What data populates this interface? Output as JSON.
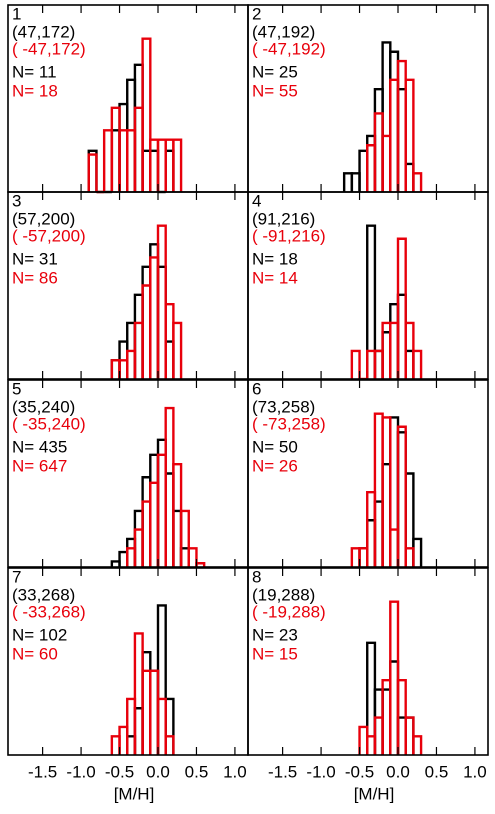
{
  "chart_data": [
    {
      "type": "histogram",
      "title": "1",
      "annotations": [
        "(47,172)",
        "( -47,172)"
      ],
      "xlim": [
        -1.95,
        1.17
      ],
      "ylim": [
        0,
        1
      ],
      "series": [
        {
          "name": "N= 11",
          "color": "#000000",
          "bins": [
            -0.9,
            -0.8,
            -0.7,
            -0.6,
            -0.5,
            -0.4,
            -0.3,
            -0.2,
            -0.1,
            0,
            0.1,
            0.2
          ],
          "values": [
            0.22,
            0,
            0,
            0.33,
            0.47,
            0.6,
            0.68,
            0.22,
            0.22,
            0,
            0.22
          ]
        },
        {
          "name": "N= 18",
          "color": "#e8000b",
          "bins": [
            -0.9,
            -0.8,
            -0.7,
            -0.6,
            -0.5,
            -0.4,
            -0.3,
            -0.2,
            -0.1,
            0,
            0.1,
            0.2,
            0.3
          ],
          "values": [
            0.2,
            0,
            0.33,
            0.45,
            0.33,
            0.33,
            0.45,
            0.82,
            0.28,
            0.28,
            0.28,
            0.28
          ]
        }
      ]
    },
    {
      "type": "histogram",
      "title": "2",
      "annotations": [
        "(47,192)",
        "( -47,192)"
      ],
      "xlim": [
        -1.95,
        1.17
      ],
      "ylim": [
        0,
        1
      ],
      "series": [
        {
          "name": "N= 25",
          "color": "#000000",
          "bins": [
            -0.7,
            -0.6,
            -0.5,
            -0.4,
            -0.3,
            -0.2,
            -0.1,
            0,
            0.1,
            0.2
          ],
          "values": [
            0.1,
            0.1,
            0.22,
            0.3,
            0.55,
            0.8,
            0.75,
            0.55,
            0.15
          ]
        },
        {
          "name": "N= 55",
          "color": "#e8000b",
          "bins": [
            -0.4,
            -0.3,
            -0.2,
            -0.1,
            0,
            0.1,
            0.2,
            0.3
          ],
          "values": [
            0.25,
            0.42,
            0.3,
            0.6,
            0.7,
            0.6,
            0.1
          ]
        }
      ]
    },
    {
      "type": "histogram",
      "title": "3",
      "annotations": [
        "(57,200)",
        "( -57,200)"
      ],
      "xlim": [
        -1.95,
        1.17
      ],
      "ylim": [
        0,
        1
      ],
      "series": [
        {
          "name": "N= 31",
          "color": "#000000",
          "bins": [
            -0.6,
            -0.5,
            -0.4,
            -0.3,
            -0.2,
            -0.1,
            0,
            0.1,
            0.2
          ],
          "values": [
            0.1,
            0.2,
            0.3,
            0.45,
            0.6,
            0.72,
            0.6,
            0.2
          ]
        },
        {
          "name": "N= 86",
          "color": "#e8000b",
          "bins": [
            -0.6,
            -0.5,
            -0.4,
            -0.3,
            -0.2,
            -0.1,
            0,
            0.1,
            0.2,
            0.3
          ],
          "values": [
            0.1,
            0.1,
            0.15,
            0.3,
            0.5,
            0.65,
            0.82,
            0.4,
            0.3
          ]
        }
      ]
    },
    {
      "type": "histogram",
      "title": "4",
      "annotations": [
        "(91,216)",
        "( -91,216)"
      ],
      "xlim": [
        -1.95,
        1.17
      ],
      "ylim": [
        0,
        1
      ],
      "series": [
        {
          "name": "N= 18",
          "color": "#000000",
          "bins": [
            -0.4,
            -0.3,
            -0.2,
            -0.1,
            0,
            0.1,
            0.2
          ],
          "values": [
            0.82,
            0.15,
            0.25,
            0.4,
            0.45,
            0.15
          ]
        },
        {
          "name": "N= 14",
          "color": "#e8000b",
          "bins": [
            -0.6,
            -0.5,
            -0.4,
            -0.3,
            -0.2,
            -0.1,
            0,
            0.1,
            0.2,
            0.3
          ],
          "values": [
            0.15,
            0,
            0.15,
            0.15,
            0.3,
            0.3,
            0.75,
            0.3,
            0.15
          ]
        }
      ]
    },
    {
      "type": "histogram",
      "title": "5",
      "annotations": [
        "(35,240)",
        "( -35,240)"
      ],
      "xlim": [
        -1.95,
        1.17
      ],
      "ylim": [
        0,
        1
      ],
      "series": [
        {
          "name": "N= 435",
          "color": "#000000",
          "bins": [
            -0.6,
            -0.5,
            -0.4,
            -0.3,
            -0.2,
            -0.1,
            0,
            0.1,
            0.2,
            0.3,
            0.4
          ],
          "values": [
            0.03,
            0.08,
            0.15,
            0.3,
            0.48,
            0.6,
            0.68,
            0.5,
            0.3,
            0.1
          ]
        },
        {
          "name": "N= 647",
          "color": "#e8000b",
          "bins": [
            -0.4,
            -0.3,
            -0.2,
            -0.1,
            0,
            0.1,
            0.2,
            0.3,
            0.4,
            0.5,
            0.6
          ],
          "values": [
            0.1,
            0.2,
            0.35,
            0.45,
            0.6,
            0.85,
            0.55,
            0.3,
            0.1,
            0.02
          ]
        }
      ]
    },
    {
      "type": "histogram",
      "title": "6",
      "annotations": [
        "(73,258)",
        "( -73,258)"
      ],
      "xlim": [
        -1.95,
        1.17
      ],
      "ylim": [
        0,
        1
      ],
      "series": [
        {
          "name": "N= 50",
          "color": "#000000",
          "bins": [
            -0.5,
            -0.4,
            -0.3,
            -0.2,
            -0.1,
            0,
            0.1,
            0.2,
            0.3
          ],
          "values": [
            0.1,
            0.25,
            0.35,
            0.55,
            0.8,
            0.72,
            0.5,
            0.15
          ]
        },
        {
          "name": "N= 26",
          "color": "#e8000b",
          "bins": [
            -0.6,
            -0.5,
            -0.4,
            -0.3,
            -0.2,
            -0.1,
            0,
            0.1,
            0.2
          ],
          "values": [
            0.1,
            0.1,
            0.4,
            0.82,
            0.8,
            0.2,
            0.75,
            0.1
          ]
        }
      ]
    },
    {
      "type": "histogram",
      "title": "7",
      "annotations": [
        "(33,268)",
        "( -33,268)"
      ],
      "xlim": [
        -1.95,
        1.17
      ],
      "ylim": [
        0,
        1
      ],
      "xlabel": "[M/H]",
      "xticks": [
        -1.5,
        {
          "value": -1,
          "label": "-1.0"
        },
        -0.5,
        {
          "value": 0,
          "label": "0.0"
        },
        0.5,
        {
          "value": 1,
          "label": "1.0"
        }
      ],
      "series": [
        {
          "name": "N= 102",
          "color": "#000000",
          "bins": [
            -0.4,
            -0.3,
            -0.2,
            -0.1,
            0,
            0.1,
            0.2
          ],
          "values": [
            0.1,
            0.25,
            0.55,
            0.45,
            0.8,
            0.3
          ]
        },
        {
          "name": "N= 60",
          "color": "#e8000b",
          "bins": [
            -0.6,
            -0.5,
            -0.4,
            -0.3,
            -0.2,
            -0.1,
            0,
            0.1,
            0.2
          ],
          "values": [
            0.1,
            0.15,
            0.3,
            0.65,
            0.45,
            0.45,
            0.3,
            0.1
          ]
        }
      ]
    },
    {
      "type": "histogram",
      "title": "8",
      "annotations": [
        "(19,288)",
        "( -19,288)"
      ],
      "xlim": [
        -1.95,
        1.17
      ],
      "ylim": [
        0,
        1
      ],
      "xlabel": "[M/H]",
      "xticks": [
        -1.5,
        {
          "value": -1,
          "label": "-1.0"
        },
        -0.5,
        {
          "value": 0,
          "label": "0.0"
        },
        0.5,
        {
          "value": 1,
          "label": "1.0"
        }
      ],
      "series": [
        {
          "name": "N= 23",
          "color": "#000000",
          "bins": [
            -0.4,
            -0.3,
            -0.2,
            -0.1,
            0,
            0.1,
            0.2
          ],
          "values": [
            0.6,
            0.35,
            0.35,
            0.5,
            0.2,
            0.2
          ]
        },
        {
          "name": "N= 15",
          "color": "#e8000b",
          "bins": [
            -0.5,
            -0.4,
            -0.3,
            -0.2,
            -0.1,
            0,
            0.1,
            0.2,
            0.3
          ],
          "values": [
            0.15,
            0.1,
            0.2,
            0.4,
            0.82,
            0.4,
            0.2,
            0.1
          ]
        }
      ]
    }
  ]
}
